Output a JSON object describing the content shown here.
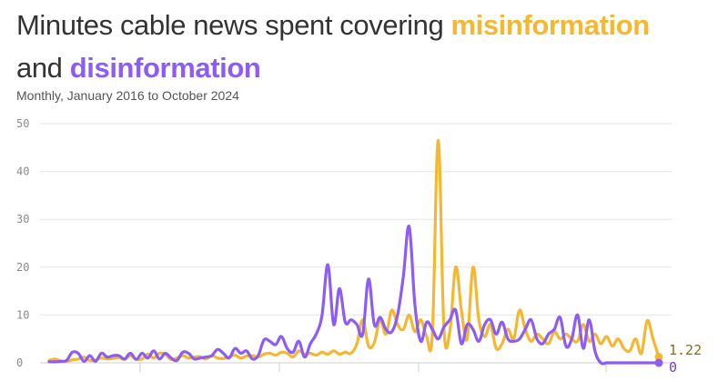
{
  "title": {
    "prefix": "Minutes cable news spent covering ",
    "highlight1": "misinformation",
    "line2_prefix": "and ",
    "highlight2": "disinformation"
  },
  "subtitle": "Monthly, January 2016 to October 2024",
  "colors": {
    "misinformation": "#f5b731",
    "disinformation": "#8b5cf6",
    "grid": "#e6e6e6",
    "text": "#333333"
  },
  "chart_data": {
    "type": "line",
    "title": "Minutes cable news spent covering misinformation and disinformation",
    "subtitle": "Monthly, January 2016 to October 2024",
    "xlabel": "",
    "ylabel": "",
    "ylim": [
      0,
      50
    ],
    "y_ticks": [
      0,
      10,
      20,
      30,
      40,
      50
    ],
    "x_range": [
      "2016-01",
      "2024-10"
    ],
    "grid": "horizontal",
    "legend": "in title",
    "x_label_positions_per_month_index": "x = month index 0..105 (Jan 2016 .. Oct 2024)",
    "series": [
      {
        "name": "misinformation",
        "color": "#f5b731",
        "end_label": "1.22",
        "values": [
          0.5,
          0.8,
          0.4,
          0.3,
          0.6,
          0.8,
          1.2,
          0.5,
          0.6,
          1.0,
          0.8,
          0.9,
          1.1,
          0.7,
          1.5,
          0.8,
          0.8,
          1.8,
          1.0,
          2.0,
          1.8,
          0.7,
          1.0,
          1.5,
          1.0,
          1.2,
          1.3,
          0.8,
          1.5,
          1.0,
          0.9,
          1.2,
          1.6,
          1.0,
          1.4,
          1.5,
          1.2,
          1.8,
          2.0,
          1.6,
          2.2,
          2.0,
          1.2,
          2.5,
          1.8,
          2.0,
          1.6,
          2.2,
          1.8,
          2.5,
          1.8,
          2.2,
          2.0,
          4.0,
          9.0,
          3.5,
          4.2,
          9.0,
          6.0,
          11.0,
          8.0,
          7.0,
          10.0,
          6.5,
          9.0,
          5.5,
          6.0,
          46.5,
          7.0,
          6.5,
          20.0,
          11.0,
          5.0,
          20.0,
          9.0,
          5.5,
          8.0,
          3.0,
          4.0,
          7.0,
          5.0,
          11.0,
          7.0,
          4.5,
          6.0,
          5.0,
          4.0,
          6.5,
          5.0,
          6.0,
          5.0,
          4.5,
          8.0,
          4.5,
          6.0,
          4.0,
          5.5,
          3.5,
          5.0,
          3.0,
          2.5,
          5.0,
          2.0,
          8.8,
          5.0,
          1.22
        ]
      },
      {
        "name": "disinformation",
        "color": "#8b5cf6",
        "end_label": "0",
        "values": [
          0.2,
          0.2,
          0.3,
          0.5,
          2.2,
          2.0,
          0.3,
          1.5,
          0.3,
          2.0,
          1.2,
          1.5,
          1.5,
          0.8,
          2.0,
          0.7,
          2.0,
          1.0,
          2.5,
          0.8,
          2.0,
          1.0,
          0.5,
          2.2,
          2.0,
          0.8,
          1.0,
          1.2,
          1.5,
          2.8,
          2.0,
          1.0,
          3.0,
          2.0,
          2.5,
          0.8,
          1.5,
          4.8,
          4.5,
          3.8,
          5.5,
          3.0,
          2.2,
          4.5,
          1.2,
          4.0,
          6.0,
          10.0,
          20.5,
          8.0,
          15.5,
          8.5,
          9.0,
          8.0,
          6.0,
          17.5,
          8.0,
          9.5,
          7.0,
          6.5,
          10.0,
          18.0,
          28.5,
          12.0,
          4.5,
          8.5,
          7.0,
          5.0,
          7.5,
          9.0,
          11.0,
          4.0,
          8.0,
          7.0,
          4.5,
          8.0,
          9.0,
          6.0,
          8.5,
          5.0,
          4.5,
          5.0,
          7.0,
          9.0,
          5.0,
          4.0,
          6.0,
          7.0,
          9.5,
          3.5,
          5.0,
          10.0,
          3.0,
          9.0,
          2.5,
          0.0,
          0.0,
          0.0,
          0.0,
          0.0,
          0.0,
          0.0,
          0.0,
          0.0,
          0.0,
          0.0
        ]
      }
    ]
  }
}
